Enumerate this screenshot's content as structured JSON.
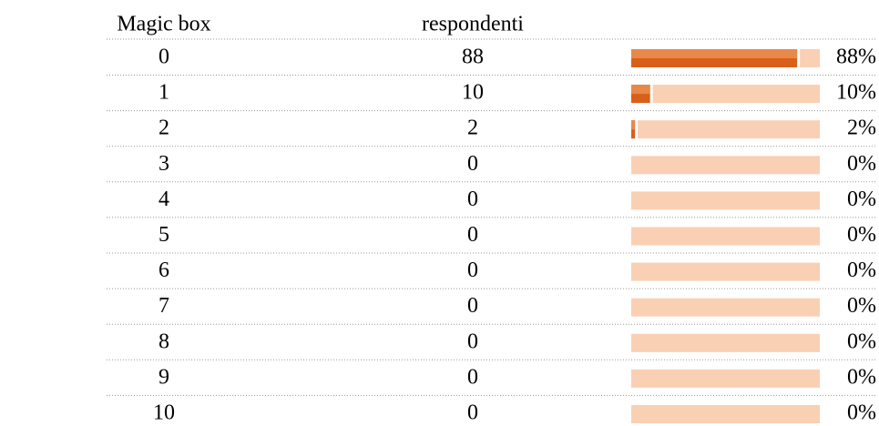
{
  "table": {
    "header": [
      "Magic box",
      "respondenti"
    ],
    "rows": [
      {
        "label": "0",
        "count": 88,
        "percent": {
          "value": 88,
          "label": "88%"
        }
      },
      {
        "label": "1",
        "count": 10,
        "percent": {
          "value": 10,
          "label": "10%"
        }
      },
      {
        "label": "2",
        "count": 2,
        "percent": {
          "value": 2,
          "label": "2%"
        }
      },
      {
        "label": "3",
        "count": 0,
        "percent": {
          "value": 0,
          "label": "0%"
        }
      },
      {
        "label": "4",
        "count": 0,
        "percent": {
          "value": 0,
          "label": "0%"
        }
      },
      {
        "label": "5",
        "count": 0,
        "percent": {
          "value": 0,
          "label": "0%"
        }
      },
      {
        "label": "6",
        "count": 0,
        "percent": {
          "value": 0,
          "label": "0%"
        }
      },
      {
        "label": "7",
        "count": 0,
        "percent": {
          "value": 0,
          "label": "0%"
        }
      },
      {
        "label": "8",
        "count": 0,
        "percent": {
          "value": 0,
          "label": "0%"
        }
      },
      {
        "label": "9",
        "count": 0,
        "percent": {
          "value": 0,
          "label": "0%"
        }
      },
      {
        "label": "10",
        "count": 0,
        "percent": {
          "value": 0,
          "label": "0%"
        }
      }
    ]
  }
}
